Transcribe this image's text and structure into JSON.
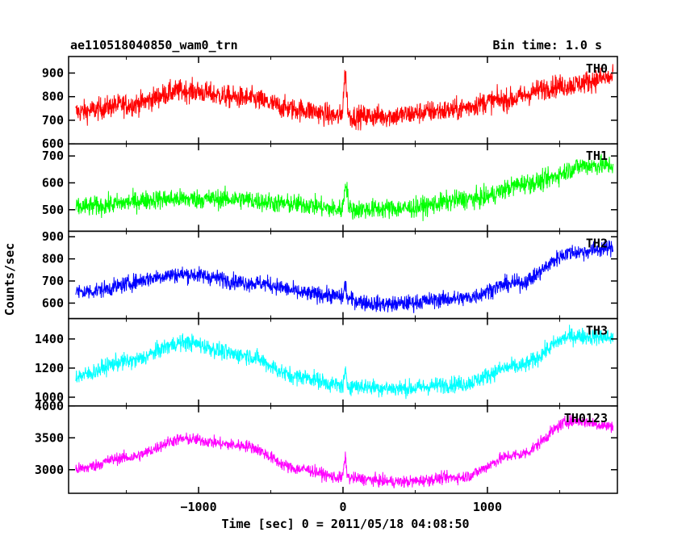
{
  "header": {
    "title": "ae110518040850_wam0_trn",
    "bin_time": "Bin time: 1.0 s"
  },
  "chart_data": {
    "type": "line",
    "xlabel": "Time [sec] 0 = 2011/05/18 04:08:50",
    "ylabel": "Counts/sec",
    "xlim": [
      -1900,
      1900
    ],
    "x_range": [
      -1850,
      1870
    ],
    "x_ticks": [
      -1000,
      0,
      1000
    ],
    "x_tick_labels": [
      "−1000",
      "0",
      "1000"
    ],
    "panels": [
      {
        "name": "TH0",
        "color": "#ff0000",
        "ylim": [
          600,
          970
        ],
        "y_ticks": [
          600,
          700,
          800,
          900
        ],
        "y_tick_labels": [
          "600",
          "700",
          "800",
          "900"
        ],
        "noise": 45,
        "profile": [
          [
            -1850,
            735
          ],
          [
            -1500,
            765
          ],
          [
            -1100,
            825
          ],
          [
            -700,
            795
          ],
          [
            -300,
            745
          ],
          [
            0,
            715
          ],
          [
            300,
            718
          ],
          [
            700,
            740
          ],
          [
            1100,
            785
          ],
          [
            1500,
            845
          ],
          [
            1870,
            880
          ]
        ],
        "spike": {
          "x": 15,
          "height": 175,
          "width": 15
        }
      },
      {
        "name": "TH1",
        "color": "#00ff00",
        "ylim": [
          420,
          745
        ],
        "y_ticks": [
          500,
          600,
          700
        ],
        "y_tick_labels": [
          "500",
          "600",
          "700"
        ],
        "noise": 35,
        "profile": [
          [
            -1850,
            510
          ],
          [
            -1200,
            540
          ],
          [
            -800,
            540
          ],
          [
            -300,
            520
          ],
          [
            0,
            500
          ],
          [
            400,
            505
          ],
          [
            900,
            540
          ],
          [
            1300,
            600
          ],
          [
            1700,
            665
          ],
          [
            1870,
            665
          ]
        ],
        "spike": {
          "x": 20,
          "height": 100,
          "width": 15
        }
      },
      {
        "name": "TH2",
        "color": "#0000ff",
        "ylim": [
          530,
          925
        ],
        "y_ticks": [
          600,
          700,
          800,
          900
        ],
        "y_tick_labels": [
          "600",
          "700",
          "800",
          "900"
        ],
        "noise": 35,
        "profile": [
          [
            -1850,
            650
          ],
          [
            -1100,
            730
          ],
          [
            -600,
            690
          ],
          [
            -200,
            640
          ],
          [
            300,
            595
          ],
          [
            800,
            620
          ],
          [
            1200,
            690
          ],
          [
            1600,
            830
          ],
          [
            1870,
            850
          ]
        ],
        "spike": {
          "x": 15,
          "height": 60,
          "width": 10
        }
      },
      {
        "name": "TH3",
        "color": "#00ffff",
        "ylim": [
          940,
          1540
        ],
        "y_ticks": [
          1000,
          1200,
          1400
        ],
        "y_tick_labels": [
          "1000",
          "1200",
          "1400"
        ],
        "noise": 55,
        "profile": [
          [
            -1850,
            1145
          ],
          [
            -1500,
            1245
          ],
          [
            -1100,
            1375
          ],
          [
            -700,
            1290
          ],
          [
            -300,
            1140
          ],
          [
            0,
            1080
          ],
          [
            400,
            1060
          ],
          [
            800,
            1090
          ],
          [
            1200,
            1210
          ],
          [
            1600,
            1420
          ],
          [
            1870,
            1410
          ]
        ],
        "spike": {
          "x": 15,
          "height": 80,
          "width": 10
        }
      },
      {
        "name": "TH0123",
        "color": "#ff00ff",
        "ylim": [
          2630,
          4000
        ],
        "y_ticks": [
          3000,
          3500,
          4000
        ],
        "y_tick_labels": [
          "3000",
          "3500",
          "4000"
        ],
        "noise": 90,
        "profile": [
          [
            -1850,
            3010
          ],
          [
            -1500,
            3190
          ],
          [
            -1100,
            3480
          ],
          [
            -700,
            3380
          ],
          [
            -300,
            3010
          ],
          [
            0,
            2870
          ],
          [
            400,
            2810
          ],
          [
            800,
            2880
          ],
          [
            1200,
            3230
          ],
          [
            1600,
            3770
          ],
          [
            1870,
            3680
          ]
        ],
        "spike": {
          "x": 15,
          "height": 300,
          "width": 12
        }
      }
    ]
  }
}
